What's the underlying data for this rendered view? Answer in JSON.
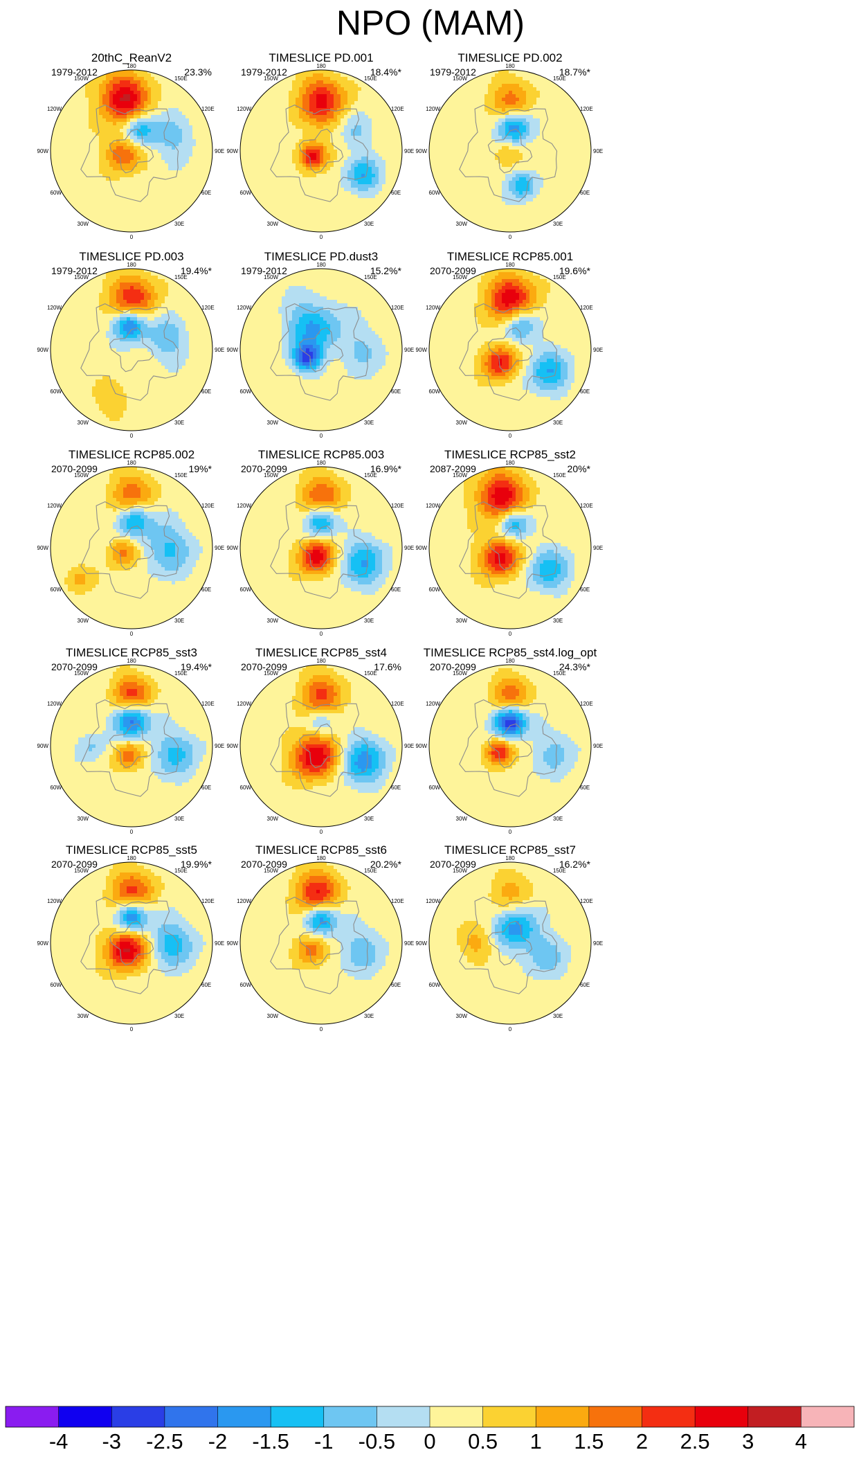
{
  "title": "NPO (MAM)",
  "colors": {
    "palette": [
      "#8a1cf0",
      "#1000f0",
      "#2a3ee6",
      "#3074ec",
      "#2a98f0",
      "#16c0f4",
      "#6ec6f2",
      "#b4def2",
      "#fef49a",
      "#fbd232",
      "#fbaa10",
      "#f7720c",
      "#f42e12",
      "#e8000c",
      "#c21e22",
      "#f7b4b8"
    ],
    "land_outline": "#8c8c8c",
    "circle_edge": "#000000"
  },
  "legend": {
    "tick_labels": [
      "-4",
      "-3",
      "-2.5",
      "-2",
      "-1.5",
      "-1",
      "-0.5",
      "0",
      "0.5",
      "1",
      "1.5",
      "2",
      "2.5",
      "3",
      "4"
    ]
  },
  "map_labels": {
    "top": "180",
    "bottom": "0",
    "left": "90W",
    "right": "90E",
    "upper_left_inner": "150W",
    "upper_left_outer": "120W",
    "upper_right_inner": "150E",
    "upper_right_outer": "120E",
    "lower_left_outer": "60W",
    "lower_left_inner": "30W",
    "lower_right_outer": "60E",
    "lower_right_inner": "30E"
  },
  "chart_data": {
    "type": "heatmap",
    "description_units": "NPO pattern anomaly",
    "panels": [
      {
        "name": "20thC_ReanV2",
        "period": "1979-2012",
        "variance": "23.3%"
      },
      {
        "name": "TIMESLICE PD.001",
        "period": "1979-2012",
        "variance": "18.4%*"
      },
      {
        "name": "TIMESLICE PD.002",
        "period": "1979-2012",
        "variance": "18.7%*"
      },
      {
        "name": "TIMESLICE PD.003",
        "period": "1979-2012",
        "variance": "19.4%*"
      },
      {
        "name": "TIMESLICE PD.dust3",
        "period": "1979-2012",
        "variance": "15.2%*"
      },
      {
        "name": "TIMESLICE RCP85.001",
        "period": "2070-2099",
        "variance": "19.6%*"
      },
      {
        "name": "TIMESLICE RCP85.002",
        "period": "2070-2099",
        "variance": "19%*"
      },
      {
        "name": "TIMESLICE RCP85.003",
        "period": "2070-2099",
        "variance": "16.9%*"
      },
      {
        "name": "TIMESLICE RCP85_sst2",
        "period": "2087-2099",
        "variance": "20%*"
      },
      {
        "name": "TIMESLICE RCP85_sst3",
        "period": "2070-2099",
        "variance": "19.4%*"
      },
      {
        "name": "TIMESLICE RCP85_sst4",
        "period": "2070-2099",
        "variance": "17.6%"
      },
      {
        "name": "TIMESLICE RCP85_sst4.log_opt",
        "period": "2070-2099",
        "variance": "24.3%*"
      },
      {
        "name": "TIMESLICE RCP85_sst5",
        "period": "2070-2099",
        "variance": "19.9%*"
      },
      {
        "name": "TIMESLICE RCP85_sst6",
        "period": "2070-2099",
        "variance": "20.2%*"
      },
      {
        "name": "TIMESLICE RCP85_sst7",
        "period": "2070-2099",
        "variance": "16.2%*"
      }
    ],
    "features": [
      [
        {
          "lon": 172,
          "r": 0.66,
          "v": 2.8,
          "s": 0.22
        },
        {
          "lon": 200,
          "r": 0.28,
          "v": -1.8,
          "s": 0.14
        },
        {
          "lon": 70,
          "r": 0.12,
          "v": 1.8,
          "s": 0.16
        },
        {
          "lon": 250,
          "r": 0.55,
          "v": -1.0,
          "s": 0.18
        }
      ],
      [
        {
          "lon": 180,
          "r": 0.62,
          "v": 2.3,
          "s": 0.22
        },
        {
          "lon": 60,
          "r": 0.12,
          "v": 2.6,
          "s": 0.12
        },
        {
          "lon": 300,
          "r": 0.6,
          "v": -1.6,
          "s": 0.15
        },
        {
          "lon": 240,
          "r": 0.5,
          "v": -0.8,
          "s": 0.15
        }
      ],
      [
        {
          "lon": 180,
          "r": 0.62,
          "v": 1.4,
          "s": 0.2
        },
        {
          "lon": 190,
          "r": 0.3,
          "v": -2.3,
          "s": 0.14
        },
        {
          "lon": 340,
          "r": 0.45,
          "v": -1.6,
          "s": 0.12
        },
        {
          "lon": 60,
          "r": 0.05,
          "v": 0.8,
          "s": 0.12
        }
      ],
      [
        {
          "lon": 180,
          "r": 0.62,
          "v": 2.2,
          "s": 0.22
        },
        {
          "lon": 175,
          "r": 0.32,
          "v": -2.8,
          "s": 0.14
        },
        {
          "lon": 250,
          "r": 0.45,
          "v": -1.2,
          "s": 0.18
        },
        {
          "lon": 20,
          "r": 0.65,
          "v": 0.8,
          "s": 0.15
        }
      ],
      [
        {
          "lon": 160,
          "r": 0.3,
          "v": -1.8,
          "s": 0.22
        },
        {
          "lon": 60,
          "r": 0.2,
          "v": -2.6,
          "s": 0.12
        },
        {
          "lon": 270,
          "r": 0.5,
          "v": -0.8,
          "s": 0.2
        }
      ],
      [
        {
          "lon": 180,
          "r": 0.62,
          "v": 2.6,
          "s": 0.22
        },
        {
          "lon": 200,
          "r": 0.33,
          "v": -1.8,
          "s": 0.15
        },
        {
          "lon": 40,
          "r": 0.2,
          "v": 2.4,
          "s": 0.15
        },
        {
          "lon": 300,
          "r": 0.55,
          "v": -1.6,
          "s": 0.18
        }
      ],
      [
        {
          "lon": 180,
          "r": 0.65,
          "v": 1.6,
          "s": 0.2
        },
        {
          "lon": 185,
          "r": 0.35,
          "v": -2.1,
          "s": 0.14
        },
        {
          "lon": 60,
          "r": 0.12,
          "v": 1.6,
          "s": 0.13
        },
        {
          "lon": 270,
          "r": 0.45,
          "v": -1.3,
          "s": 0.22
        },
        {
          "lon": 60,
          "r": 0.75,
          "v": 1.0,
          "s": 0.12
        }
      ],
      [
        {
          "lon": 180,
          "r": 0.62,
          "v": 1.8,
          "s": 0.2
        },
        {
          "lon": 180,
          "r": 0.33,
          "v": -2.3,
          "s": 0.14
        },
        {
          "lon": 30,
          "r": 0.12,
          "v": 2.6,
          "s": 0.16
        },
        {
          "lon": 290,
          "r": 0.55,
          "v": -1.6,
          "s": 0.2
        }
      ],
      [
        {
          "lon": 170,
          "r": 0.65,
          "v": 2.6,
          "s": 0.22
        },
        {
          "lon": 190,
          "r": 0.3,
          "v": -2.0,
          "s": 0.13
        },
        {
          "lon": 45,
          "r": 0.18,
          "v": 2.6,
          "s": 0.17
        },
        {
          "lon": 300,
          "r": 0.55,
          "v": -1.5,
          "s": 0.18
        }
      ],
      [
        {
          "lon": 180,
          "r": 0.62,
          "v": 2.0,
          "s": 0.18
        },
        {
          "lon": 180,
          "r": 0.32,
          "v": -2.7,
          "s": 0.15
        },
        {
          "lon": 20,
          "r": 0.12,
          "v": 1.6,
          "s": 0.13
        },
        {
          "lon": 280,
          "r": 0.55,
          "v": -1.3,
          "s": 0.2
        },
        {
          "lon": 90,
          "r": 0.5,
          "v": -0.8,
          "s": 0.12
        }
      ],
      [
        {
          "lon": 180,
          "r": 0.62,
          "v": 1.8,
          "s": 0.2
        },
        {
          "lon": 30,
          "r": 0.15,
          "v": 2.8,
          "s": 0.2
        },
        {
          "lon": 180,
          "r": 0.3,
          "v": -1.3,
          "s": 0.12
        },
        {
          "lon": 290,
          "r": 0.55,
          "v": -1.9,
          "s": 0.2
        }
      ],
      [
        {
          "lon": 180,
          "r": 0.62,
          "v": 1.6,
          "s": 0.18
        },
        {
          "lon": 180,
          "r": 0.3,
          "v": -3.3,
          "s": 0.14
        },
        {
          "lon": 60,
          "r": 0.15,
          "v": 2.4,
          "s": 0.12
        },
        {
          "lon": 280,
          "r": 0.55,
          "v": -0.8,
          "s": 0.2
        }
      ],
      [
        {
          "lon": 180,
          "r": 0.62,
          "v": 2.0,
          "s": 0.2
        },
        {
          "lon": 180,
          "r": 0.33,
          "v": -2.8,
          "s": 0.14
        },
        {
          "lon": 40,
          "r": 0.1,
          "v": 2.9,
          "s": 0.18
        },
        {
          "lon": 270,
          "r": 0.5,
          "v": -1.5,
          "s": 0.2
        }
      ],
      [
        {
          "lon": 175,
          "r": 0.62,
          "v": 2.3,
          "s": 0.2
        },
        {
          "lon": 180,
          "r": 0.3,
          "v": -2.4,
          "s": 0.14
        },
        {
          "lon": 60,
          "r": 0.15,
          "v": 1.6,
          "s": 0.14
        },
        {
          "lon": 280,
          "r": 0.5,
          "v": -1.0,
          "s": 0.2
        }
      ],
      [
        {
          "lon": 180,
          "r": 0.62,
          "v": 0.9,
          "s": 0.2
        },
        {
          "lon": 200,
          "r": 0.2,
          "v": -2.0,
          "s": 0.18
        },
        {
          "lon": 90,
          "r": 0.4,
          "v": 1.0,
          "s": 0.15
        },
        {
          "lon": 290,
          "r": 0.45,
          "v": -1.0,
          "s": 0.18
        }
      ]
    ]
  }
}
